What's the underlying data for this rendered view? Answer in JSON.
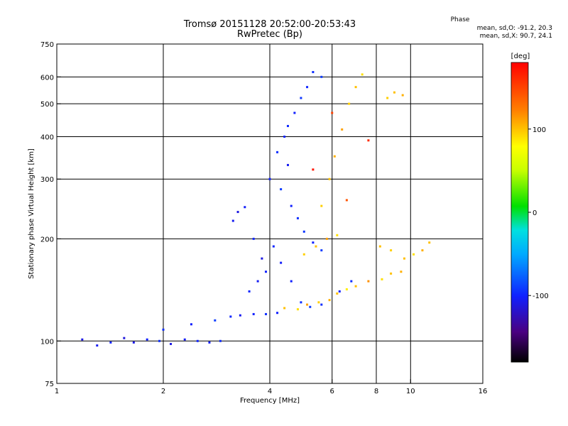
{
  "title_line1": "Tromsø 20151128 20:52:00-20:53:43",
  "title_line2": "RwPretec (Bp)",
  "phase_header": "Phase",
  "phase_o_line": "mean, sd,O: -91.2, 20.3",
  "phase_x_line": "mean, sd,X:  90.7, 24.1",
  "colorbar": {
    "label": "[deg]",
    "ticks": [
      {
        "value": 100,
        "text": "100"
      },
      {
        "value": 0,
        "text": "0"
      },
      {
        "value": -100,
        "text": "-100"
      }
    ],
    "range": [
      -180,
      180
    ]
  },
  "chart_data": {
    "type": "scatter",
    "title": "Tromsø 20151128 20:52:00-20:53:43",
    "subtitle": "RwPretec (Bp)",
    "xlabel": "Frequency [MHz]",
    "ylabel": "Stationary phase Virtual Height [km]",
    "x_scale": "log",
    "y_scale": "log",
    "xlim": [
      1,
      16
    ],
    "ylim": [
      75,
      750
    ],
    "x_ticks": [
      1,
      2,
      4,
      6,
      8,
      10,
      16
    ],
    "y_ticks": [
      75,
      100,
      200,
      300,
      400,
      500,
      600,
      750
    ],
    "grid_x": [
      2,
      4,
      6,
      8,
      10
    ],
    "grid_y": [
      100,
      200,
      300,
      400,
      500,
      600
    ],
    "color_variable": "phase [deg]",
    "series": [
      {
        "name": "O",
        "points": [
          [
            1.18,
            101,
            -110
          ],
          [
            1.3,
            97,
            -105
          ],
          [
            1.42,
            99,
            -100
          ],
          [
            1.55,
            102,
            -112
          ],
          [
            1.65,
            99,
            -108
          ],
          [
            1.8,
            101,
            -100
          ],
          [
            1.95,
            100,
            -95
          ],
          [
            2.1,
            98,
            -110
          ],
          [
            2.3,
            101,
            -104
          ],
          [
            2.5,
            100,
            -98
          ],
          [
            2.7,
            99,
            -102
          ],
          [
            2.9,
            100,
            -96
          ],
          [
            2.0,
            108,
            -95
          ],
          [
            2.4,
            112,
            -100
          ],
          [
            2.8,
            115,
            -90
          ],
          [
            3.1,
            118,
            -98
          ],
          [
            3.3,
            119,
            -105
          ],
          [
            3.6,
            120,
            -100
          ],
          [
            3.9,
            120,
            -95
          ],
          [
            4.2,
            121,
            -100
          ],
          [
            3.15,
            226,
            -105
          ],
          [
            3.25,
            240,
            -110
          ],
          [
            3.4,
            248,
            -102
          ],
          [
            3.6,
            200,
            -98
          ],
          [
            3.8,
            175,
            -110
          ],
          [
            3.9,
            160,
            -100
          ],
          [
            3.7,
            150,
            -104
          ],
          [
            3.5,
            140,
            -98
          ],
          [
            4.0,
            300,
            -100
          ],
          [
            4.2,
            360,
            -95
          ],
          [
            4.4,
            400,
            -98
          ],
          [
            4.5,
            330,
            -105
          ],
          [
            4.3,
            280,
            -90
          ],
          [
            4.6,
            250,
            -100
          ],
          [
            4.8,
            230,
            -95
          ],
          [
            5.0,
            210,
            -92
          ],
          [
            5.3,
            195,
            -100
          ],
          [
            5.6,
            185,
            -90
          ],
          [
            4.1,
            190,
            -98
          ],
          [
            4.3,
            170,
            -102
          ],
          [
            4.6,
            150,
            -100
          ],
          [
            4.9,
            130,
            -95
          ],
          [
            5.2,
            126,
            -90
          ],
          [
            5.6,
            128,
            -95
          ],
          [
            4.5,
            430,
            -96
          ],
          [
            4.7,
            470,
            -100
          ],
          [
            4.9,
            520,
            -92
          ],
          [
            5.1,
            560,
            -98
          ],
          [
            5.3,
            620,
            -95
          ],
          [
            5.6,
            600,
            -90
          ],
          [
            6.3,
            140,
            -100
          ],
          [
            6.8,
            150,
            -95
          ]
        ]
      },
      {
        "name": "X",
        "points": [
          [
            4.4,
            125,
            100
          ],
          [
            4.8,
            124,
            90
          ],
          [
            5.1,
            128,
            110
          ],
          [
            5.5,
            130,
            95
          ],
          [
            5.9,
            132,
            105
          ],
          [
            6.2,
            138,
            100
          ],
          [
            6.6,
            142,
            85
          ],
          [
            7.0,
            145,
            100
          ],
          [
            7.6,
            150,
            115
          ],
          [
            8.3,
            152,
            90
          ],
          [
            8.8,
            158,
            100
          ],
          [
            9.4,
            160,
            105
          ],
          [
            5.0,
            180,
            95
          ],
          [
            5.4,
            190,
            100
          ],
          [
            5.8,
            200,
            110
          ],
          [
            6.2,
            205,
            90
          ],
          [
            5.6,
            250,
            95
          ],
          [
            5.9,
            300,
            100
          ],
          [
            6.1,
            350,
            105
          ],
          [
            6.4,
            420,
            110
          ],
          [
            6.7,
            500,
            95
          ],
          [
            7.0,
            560,
            100
          ],
          [
            7.3,
            610,
            90
          ],
          [
            8.6,
            520,
            95
          ],
          [
            9.0,
            540,
            100
          ],
          [
            9.5,
            530,
            105
          ],
          [
            8.2,
            190,
            100
          ],
          [
            8.8,
            185,
            95
          ],
          [
            9.6,
            175,
            100
          ],
          [
            10.2,
            180,
            90
          ],
          [
            10.8,
            185,
            105
          ],
          [
            11.3,
            195,
            100
          ],
          [
            6.0,
            470,
            150
          ],
          [
            6.6,
            260,
            140
          ],
          [
            7.6,
            390,
            160
          ],
          [
            5.3,
            320,
            170
          ]
        ]
      }
    ]
  }
}
